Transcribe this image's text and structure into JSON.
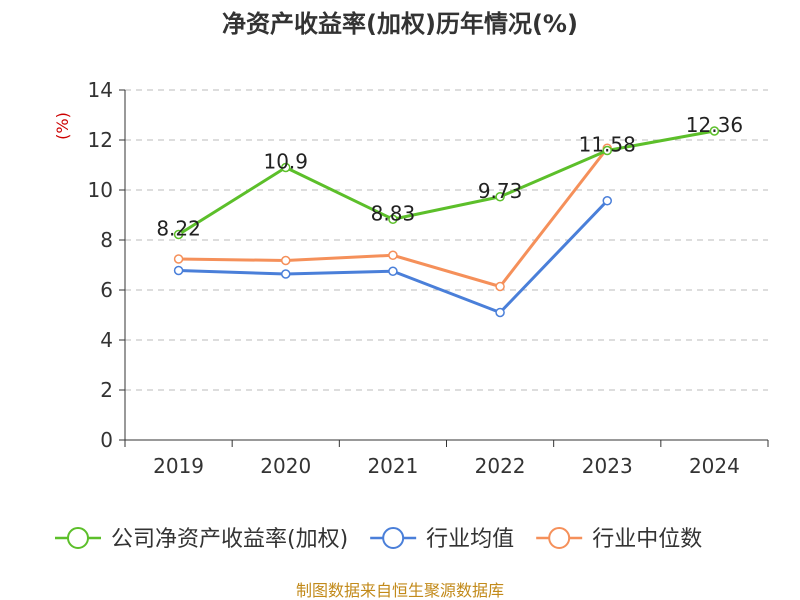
{
  "chart_data": {
    "type": "line",
    "title": "净资产收益率(加权)历年情况(%)",
    "unit_label": "(%)",
    "categories": [
      "2019",
      "2020",
      "2021",
      "2022",
      "2023",
      "2024"
    ],
    "ylim": [
      0,
      14
    ],
    "yticks": [
      0,
      2,
      4,
      6,
      8,
      10,
      12,
      14
    ],
    "series": [
      {
        "name": "公司净资产收益率(加权)",
        "color": "#5cbf2a",
        "values": [
          8.22,
          10.9,
          8.83,
          9.73,
          11.58,
          12.36
        ],
        "labels": [
          "8.22",
          "10.9",
          "8.83",
          "9.73",
          "11.58",
          "12.36"
        ],
        "show_labels": true
      },
      {
        "name": "行业均值",
        "color": "#4a7fd9",
        "values": [
          6.78,
          6.64,
          6.75,
          5.1,
          9.57,
          null
        ],
        "show_labels": false
      },
      {
        "name": "行业中位数",
        "color": "#f5905a",
        "values": [
          7.24,
          7.18,
          7.39,
          6.14,
          11.67,
          null
        ],
        "show_labels": false
      }
    ],
    "grid": true,
    "legend_position": "bottom"
  },
  "source": "制图数据来自恒生聚源数据库"
}
